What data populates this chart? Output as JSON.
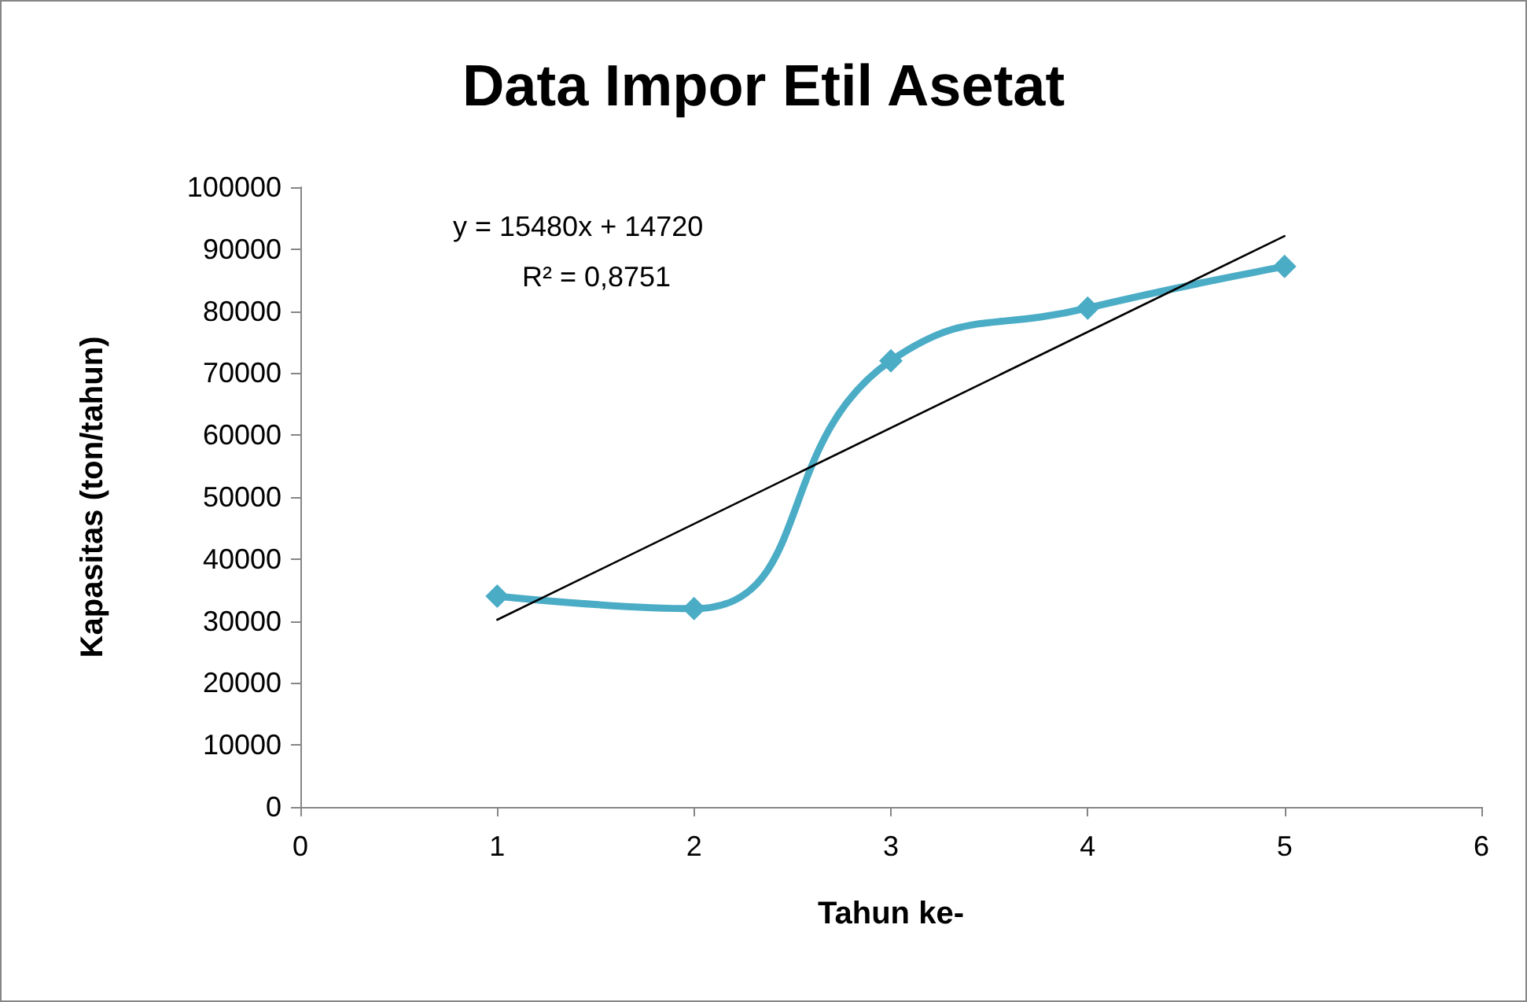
{
  "chart_data": {
    "type": "line",
    "title": "Data Impor Etil Asetat",
    "xlabel": "Tahun ke-",
    "ylabel": "Kapasitas (ton/tahun)",
    "x": [
      1,
      2,
      3,
      4,
      5
    ],
    "series": [
      {
        "color": "#4bacc6",
        "values": [
          34000,
          32000,
          72000,
          80500,
          87200
        ],
        "marker": "diamond"
      },
      {
        "color": "#000000",
        "x": [
          1,
          5
        ],
        "values": [
          30200,
          92120
        ],
        "marker": "none"
      }
    ],
    "xlim": [
      0,
      6
    ],
    "xticks": [
      0,
      1,
      2,
      3,
      4,
      5,
      6
    ],
    "ylim": [
      0,
      100000
    ],
    "yticks": [
      0,
      10000,
      20000,
      30000,
      40000,
      50000,
      60000,
      70000,
      80000,
      90000,
      100000
    ],
    "annotations": [
      "y = 15480x + 14720",
      "R² = 0,8751"
    ],
    "line_style": "solid"
  }
}
